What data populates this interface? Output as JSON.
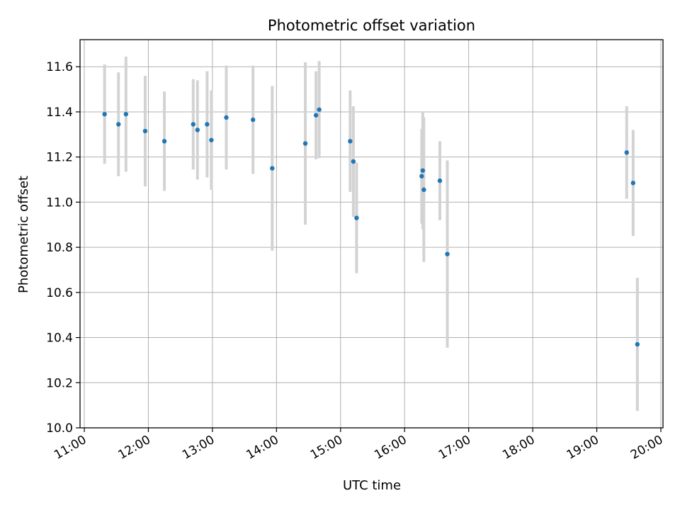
{
  "chart_data": {
    "type": "scatter",
    "title": "Photometric offset variation",
    "xlabel": "UTC time",
    "ylabel": "Photometric offset",
    "xlim": [
      "10:56",
      "20:02"
    ],
    "ylim": [
      10.0,
      11.72
    ],
    "x_ticks": [
      "11:00",
      "12:00",
      "13:00",
      "14:00",
      "15:00",
      "16:00",
      "17:00",
      "18:00",
      "19:00",
      "20:00"
    ],
    "y_ticks": [
      10.0,
      10.2,
      10.4,
      10.6,
      10.8,
      11.0,
      11.2,
      11.4,
      11.6
    ],
    "grid": true,
    "marker_color": "#1f77b4",
    "errorbar_color": "#d3d3d3",
    "series": [
      {
        "points": [
          {
            "x": "11:19",
            "y": 11.39,
            "err": 0.22
          },
          {
            "x": "11:32",
            "y": 11.345,
            "err": 0.23
          },
          {
            "x": "11:39",
            "y": 11.39,
            "err": 0.255
          },
          {
            "x": "11:57",
            "y": 11.315,
            "err": 0.245
          },
          {
            "x": "12:15",
            "y": 11.27,
            "err": 0.22
          },
          {
            "x": "12:42",
            "y": 11.345,
            "err": 0.2
          },
          {
            "x": "12:46",
            "y": 11.32,
            "err": 0.22
          },
          {
            "x": "12:55",
            "y": 11.345,
            "err": 0.235
          },
          {
            "x": "12:59",
            "y": 11.275,
            "err": 0.22
          },
          {
            "x": "13:13",
            "y": 11.375,
            "err": 0.23
          },
          {
            "x": "13:38",
            "y": 11.365,
            "err": 0.24
          },
          {
            "x": "13:56",
            "y": 11.15,
            "err": 0.365
          },
          {
            "x": "14:27",
            "y": 11.26,
            "err": 0.36
          },
          {
            "x": "14:37",
            "y": 11.385,
            "err": 0.195
          },
          {
            "x": "14:40",
            "y": 11.41,
            "err": 0.215
          },
          {
            "x": "15:09",
            "y": 11.27,
            "err": 0.225
          },
          {
            "x": "15:12",
            "y": 11.18,
            "err": 0.245
          },
          {
            "x": "15:15",
            "y": 10.93,
            "err": 0.245
          },
          {
            "x": "16:16",
            "y": 11.115,
            "err": 0.21
          },
          {
            "x": "16:17",
            "y": 11.14,
            "err": 0.26
          },
          {
            "x": "16:18",
            "y": 11.055,
            "err": 0.32
          },
          {
            "x": "16:33",
            "y": 11.095,
            "err": 0.175
          },
          {
            "x": "16:40",
            "y": 10.77,
            "err": 0.415
          },
          {
            "x": "19:28",
            "y": 11.22,
            "err": 0.205
          },
          {
            "x": "19:34",
            "y": 11.085,
            "err": 0.235
          },
          {
            "x": "19:38",
            "y": 10.37,
            "err": 0.295
          }
        ]
      }
    ]
  }
}
